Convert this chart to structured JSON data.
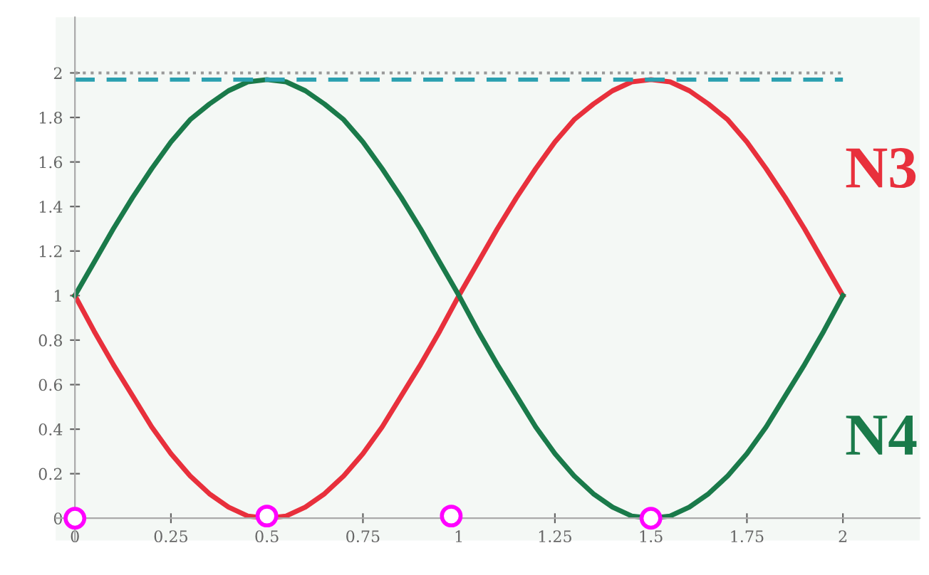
{
  "chart_data": {
    "type": "line",
    "x": [
      0,
      0.05,
      0.1,
      0.15,
      0.2,
      0.25,
      0.3,
      0.35,
      0.4,
      0.45,
      0.5,
      0.55,
      0.6,
      0.65,
      0.7,
      0.75,
      0.8,
      0.85,
      0.9,
      0.95,
      1,
      1.05,
      1.1,
      1.15,
      1.2,
      1.25,
      1.3,
      1.35,
      1.4,
      1.45,
      1.5,
      1.55,
      1.6,
      1.65,
      1.7,
      1.75,
      1.8,
      1.85,
      1.9,
      1.95,
      2
    ],
    "series": [
      {
        "name": "N3",
        "color": "#e8303c",
        "values": [
          1,
          0.84,
          0.69,
          0.55,
          0.41,
          0.29,
          0.19,
          0.11,
          0.05,
          0.01,
          0,
          0.01,
          0.05,
          0.11,
          0.19,
          0.29,
          0.41,
          0.55,
          0.69,
          0.84,
          1,
          1.15,
          1.3,
          1.44,
          1.57,
          1.69,
          1.79,
          1.86,
          1.92,
          1.96,
          1.97,
          1.96,
          1.92,
          1.86,
          1.79,
          1.69,
          1.57,
          1.44,
          1.3,
          1.15,
          1
        ]
      },
      {
        "name": "N4",
        "color": "#1a7a4a",
        "values": [
          1,
          1.15,
          1.3,
          1.44,
          1.57,
          1.69,
          1.79,
          1.86,
          1.92,
          1.96,
          1.97,
          1.96,
          1.92,
          1.86,
          1.79,
          1.69,
          1.57,
          1.44,
          1.3,
          1.15,
          1,
          0.84,
          0.69,
          0.55,
          0.41,
          0.29,
          0.19,
          0.11,
          0.05,
          0.01,
          0,
          0.01,
          0.05,
          0.11,
          0.19,
          0.29,
          0.41,
          0.55,
          0.69,
          0.84,
          1
        ]
      },
      {
        "type": "scatter",
        "marker": "circle",
        "color": "#ff00ff",
        "x": [
          0,
          0.5,
          0.98,
          1.5
        ],
        "values": [
          0,
          0.01,
          0.01,
          0
        ]
      }
    ],
    "ref_lines": [
      {
        "axis": "y",
        "value": 2,
        "color": "#999999",
        "line_style": "dotted"
      },
      {
        "axis": "y",
        "value": 1.97,
        "color": "#2aa0b0",
        "line_style": "dashed"
      }
    ],
    "xlim": [
      -0.05,
      2.2
    ],
    "ylim": [
      -0.1,
      2.25
    ],
    "xticks": [
      0,
      0.25,
      0.5,
      0.75,
      1,
      1.25,
      1.5,
      1.75,
      2
    ],
    "yticks": [
      0,
      0.2,
      0.4,
      0.6,
      0.8,
      1,
      1.2,
      1.4,
      1.6,
      1.8,
      2
    ]
  }
}
